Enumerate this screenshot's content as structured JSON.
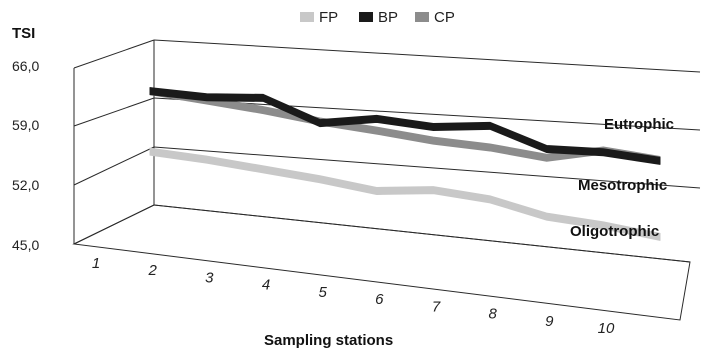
{
  "chart_data": {
    "type": "line",
    "ylabel": "TSI",
    "xlabel": "Sampling stations",
    "categories": [
      "1",
      "2",
      "3",
      "4",
      "5",
      "6",
      "7",
      "8",
      "9",
      "10"
    ],
    "y_ticks": [
      "45,0",
      "52,0",
      "59,0",
      "66,0"
    ],
    "ylim": [
      45,
      66
    ],
    "legend_position": "top",
    "series": [
      {
        "name": "FP",
        "color": "#c8c8c8",
        "values": [
          51.8,
          51.5,
          51.0,
          50.5,
          49.8,
          50.6,
          50.2,
          48.9,
          48.6,
          48.0
        ]
      },
      {
        "name": "BP",
        "color": "#1a1a1a",
        "values": [
          59.5,
          59.3,
          59.8,
          57.3,
          58.4,
          58.0,
          58.7,
          56.6,
          56.8,
          56.4
        ]
      },
      {
        "name": "CP",
        "color": "#8c8c8c",
        "values": [
          59.5,
          58.9,
          58.3,
          57.5,
          57.0,
          56.4,
          56.2,
          55.6,
          57.0,
          56.5
        ]
      }
    ],
    "annotations": [
      "Eutrophic",
      "Mesotrophic",
      "Oligotrophic"
    ]
  }
}
